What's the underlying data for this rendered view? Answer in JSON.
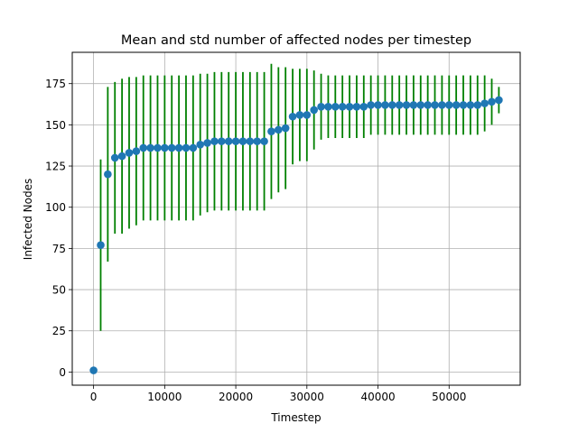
{
  "chart_data": {
    "type": "scatter",
    "title": "Mean and std number of affected nodes per timestep",
    "xlabel": "Timestep",
    "ylabel": "Infected Nodes",
    "xlim": [
      -3000,
      60000
    ],
    "ylim": [
      -8,
      194
    ],
    "grid": true,
    "xticks": [
      0,
      10000,
      20000,
      30000,
      40000,
      50000
    ],
    "xtick_labels": [
      "0",
      "10000",
      "20000",
      "30000",
      "40000",
      "50000"
    ],
    "yticks": [
      0,
      25,
      50,
      75,
      100,
      125,
      150,
      175
    ],
    "ytick_labels": [
      "0",
      "25",
      "50",
      "75",
      "100",
      "125",
      "150",
      "175"
    ],
    "marker_color": "#1f77b4",
    "errorbar_color": "#008000",
    "x": [
      0,
      1000,
      2000,
      3000,
      4000,
      5000,
      6000,
      7000,
      8000,
      9000,
      10000,
      11000,
      12000,
      13000,
      14000,
      15000,
      16000,
      17000,
      18000,
      19000,
      20000,
      21000,
      22000,
      23000,
      24000,
      25000,
      26000,
      27000,
      28000,
      29000,
      30000,
      31000,
      32000,
      33000,
      34000,
      35000,
      36000,
      37000,
      38000,
      39000,
      40000,
      41000,
      42000,
      43000,
      44000,
      45000,
      46000,
      47000,
      48000,
      49000,
      50000,
      51000,
      52000,
      53000,
      54000,
      55000,
      56000,
      57000
    ],
    "mean": [
      1,
      77,
      120,
      130,
      131,
      133,
      134,
      136,
      136,
      136,
      136,
      136,
      136,
      136,
      136,
      138,
      139,
      140,
      140,
      140,
      140,
      140,
      140,
      140,
      140,
      146,
      147,
      148,
      155,
      156,
      156,
      159,
      161,
      161,
      161,
      161,
      161,
      161,
      161,
      162,
      162,
      162,
      162,
      162,
      162,
      162,
      162,
      162,
      162,
      162,
      162,
      162,
      162,
      162,
      162,
      163,
      164,
      165
    ],
    "std": [
      0,
      52,
      53,
      46,
      47,
      46,
      45,
      44,
      44,
      44,
      44,
      44,
      44,
      44,
      44,
      43,
      42,
      42,
      42,
      42,
      42,
      42,
      42,
      42,
      42,
      41,
      38,
      37,
      29,
      28,
      28,
      24,
      20,
      19,
      19,
      19,
      19,
      19,
      19,
      18,
      18,
      18,
      18,
      18,
      18,
      18,
      18,
      18,
      18,
      18,
      18,
      18,
      18,
      18,
      18,
      17,
      14,
      8
    ]
  }
}
